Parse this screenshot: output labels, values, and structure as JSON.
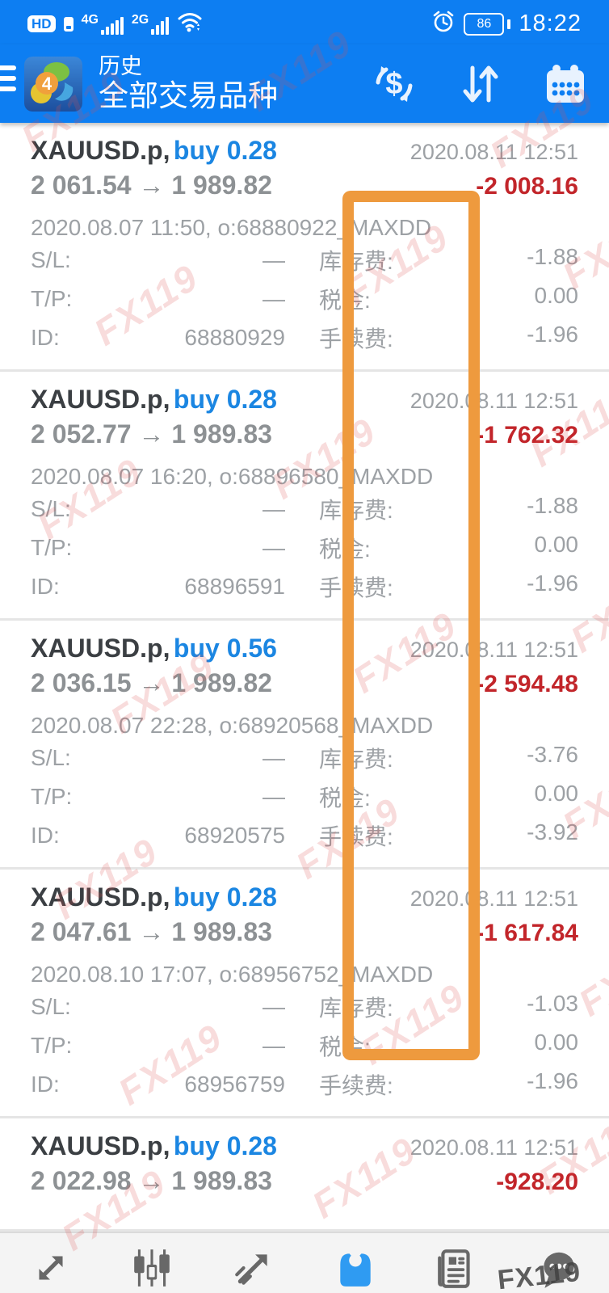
{
  "status_bar": {
    "hd_label": "HD",
    "network_primary": "4G",
    "network_secondary": "2G",
    "battery_percent": "86",
    "time": "18:22"
  },
  "header": {
    "app_badge": "4",
    "subtitle": "历史",
    "title": "全部交易品种"
  },
  "field_labels": {
    "sl": "S/L:",
    "tp": "T/P:",
    "id": "ID:",
    "swap": "库存费:",
    "tax": "税金:",
    "commission": "手续费:"
  },
  "trades": [
    {
      "symbol": "XAUUSD.p,",
      "side": "buy 0.28",
      "close_time": "2020.08.11 12:51",
      "prices": "2 061.54 → 1 989.82",
      "profit": "-2 008.16",
      "open_info": "2020.08.07 11:50, o:68880922_MAXDD",
      "sl": "—",
      "swap": "-1.88",
      "tp": "—",
      "tax": "0.00",
      "id": "68880929",
      "commission": "-1.96"
    },
    {
      "symbol": "XAUUSD.p,",
      "side": "buy 0.28",
      "close_time": "2020.08.11 12:51",
      "prices": "2 052.77 → 1 989.83",
      "profit": "-1 762.32",
      "open_info": "2020.08.07 16:20, o:68896580_MAXDD",
      "sl": "—",
      "swap": "-1.88",
      "tp": "—",
      "tax": "0.00",
      "id": "68896591",
      "commission": "-1.96"
    },
    {
      "symbol": "XAUUSD.p,",
      "side": "buy 0.56",
      "close_time": "2020.08.11 12:51",
      "prices": "2 036.15 → 1 989.82",
      "profit": "-2 594.48",
      "open_info": "2020.08.07 22:28, o:68920568_MAXDD",
      "sl": "—",
      "swap": "-3.76",
      "tp": "—",
      "tax": "0.00",
      "id": "68920575",
      "commission": "-3.92"
    },
    {
      "symbol": "XAUUSD.p,",
      "side": "buy 0.28",
      "close_time": "2020.08.11 12:51",
      "prices": "2 047.61 → 1 989.83",
      "profit": "-1 617.84",
      "open_info": "2020.08.10 17:07, o:68956752_MAXDD",
      "sl": "—",
      "swap": "-1.03",
      "tp": "—",
      "tax": "0.00",
      "id": "68956759",
      "commission": "-1.96"
    },
    {
      "symbol": "XAUUSD.p,",
      "side": "buy 0.28",
      "close_time": "2020.08.11 12:51",
      "prices": "2 022.98 → 1 989.83",
      "profit": "-928.20"
    }
  ],
  "watermark": {
    "text": "FX119"
  },
  "annotation": {
    "color": "#ee9a3e"
  },
  "colors": {
    "header_blue": "#0d7ef2",
    "buy_blue": "#1b86e2",
    "loss_red": "#c2252a",
    "active_nav_blue": "#2f9bf2"
  },
  "bottom_nav": {
    "items": [
      "quotes",
      "charts",
      "trade",
      "history",
      "news",
      "messages"
    ],
    "active": "history"
  }
}
